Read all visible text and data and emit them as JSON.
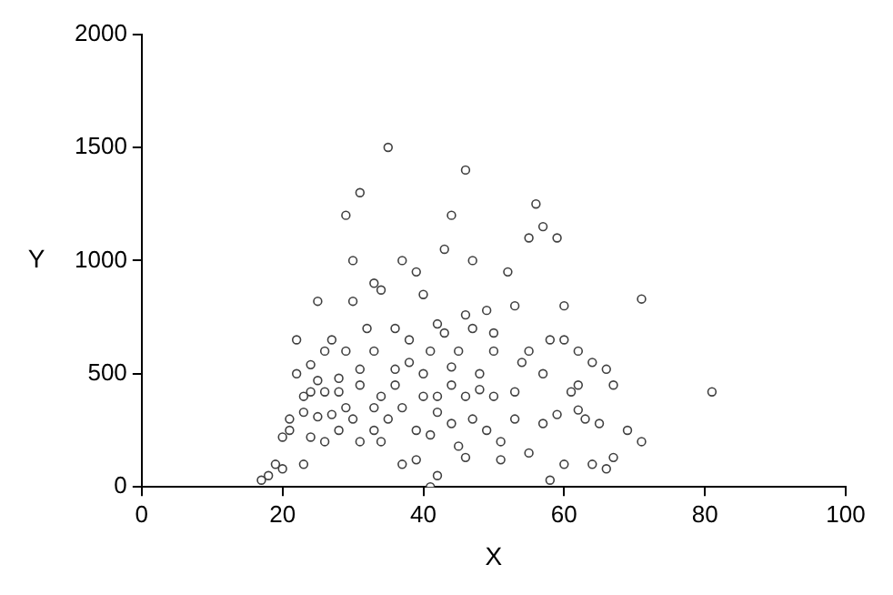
{
  "chart_data": {
    "type": "scatter",
    "xlabel": "X",
    "ylabel": "Y",
    "xlim": [
      0,
      100
    ],
    "xticks": [
      0,
      20,
      40,
      60,
      80,
      100
    ],
    "ylim": [
      0,
      2000
    ],
    "yticks": [
      0,
      500,
      1000,
      1500,
      2000
    ],
    "grid": false,
    "legend": false,
    "marker": "circle",
    "series": [
      {
        "color": "#404040",
        "x": [
          35,
          46,
          31,
          56,
          29,
          44,
          57,
          59,
          55,
          43,
          37,
          30,
          40,
          33,
          25,
          30,
          71,
          60,
          53,
          49,
          46,
          52,
          39,
          47,
          34,
          42,
          58,
          60,
          62,
          55,
          41,
          38,
          22,
          27,
          26,
          33,
          45,
          50,
          64,
          66,
          67,
          62,
          57,
          48,
          44,
          36,
          31,
          28,
          25,
          24,
          26,
          23,
          28,
          34,
          40,
          42,
          46,
          50,
          53,
          61,
          81,
          71,
          69,
          63,
          59,
          53,
          47,
          42,
          37,
          33,
          29,
          27,
          25,
          30,
          35,
          39,
          41,
          44,
          45,
          49,
          51,
          55,
          64,
          66,
          67,
          60,
          58,
          51,
          46,
          42,
          41,
          39,
          37,
          34,
          31,
          26,
          24,
          21,
          20,
          21,
          23,
          19,
          18,
          20,
          17,
          23,
          47,
          43,
          36,
          32,
          29,
          50,
          38,
          44,
          40,
          48,
          54,
          36,
          31,
          57,
          65,
          28,
          33,
          22,
          24,
          62
        ],
        "values": [
          1500,
          1400,
          1300,
          1250,
          1200,
          1200,
          1150,
          1100,
          1100,
          1050,
          1000,
          1000,
          850,
          900,
          820,
          820,
          830,
          800,
          800,
          780,
          760,
          950,
          950,
          1000,
          870,
          720,
          650,
          650,
          600,
          600,
          600,
          650,
          650,
          650,
          600,
          600,
          600,
          600,
          550,
          520,
          450,
          450,
          500,
          500,
          530,
          520,
          520,
          480,
          470,
          420,
          420,
          400,
          420,
          400,
          400,
          400,
          400,
          400,
          420,
          420,
          420,
          200,
          250,
          300,
          320,
          300,
          300,
          330,
          350,
          350,
          350,
          320,
          310,
          300,
          300,
          250,
          230,
          280,
          180,
          250,
          200,
          150,
          100,
          80,
          130,
          100,
          30,
          120,
          130,
          50,
          0,
          120,
          100,
          200,
          200,
          200,
          220,
          250,
          220,
          300,
          330,
          100,
          50,
          80,
          30,
          100,
          700,
          680,
          700,
          700,
          600,
          680,
          550,
          450,
          500,
          430,
          550,
          450,
          450,
          280,
          280,
          250,
          250,
          500,
          540,
          340
        ]
      }
    ]
  }
}
